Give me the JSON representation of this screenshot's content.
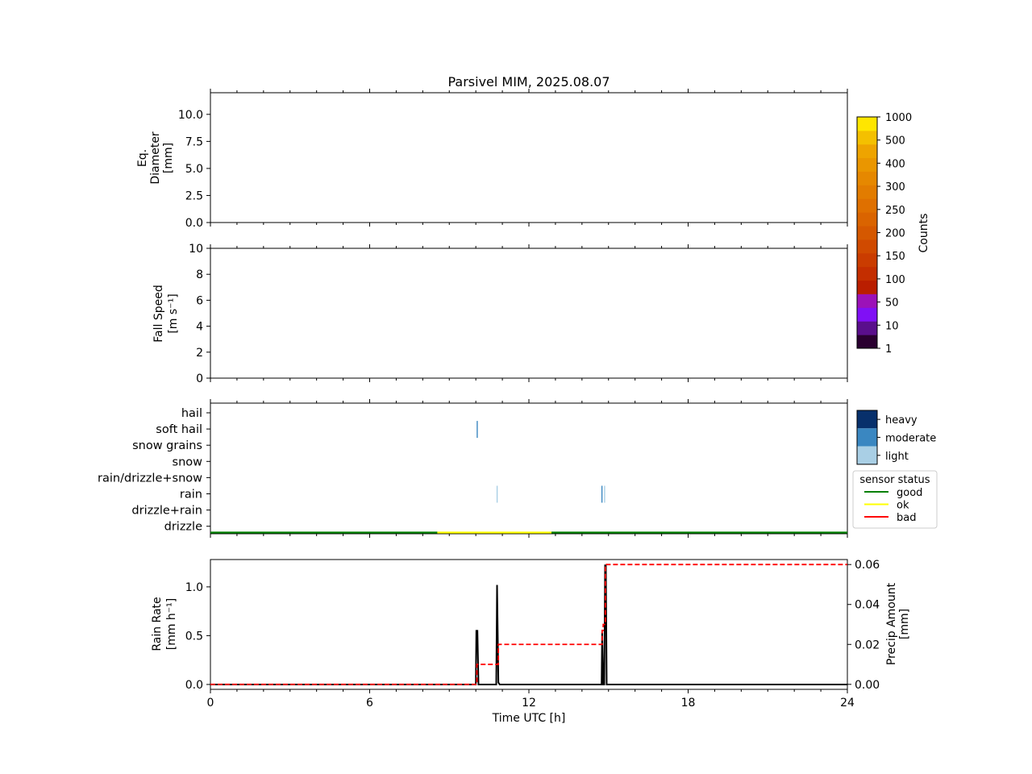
{
  "chart_data": {
    "title": "Parsivel MIM, 2025.08.07",
    "xlabel": "Time UTC [h]",
    "xlim": [
      0,
      24
    ],
    "x_ticks": [
      0,
      6,
      12,
      18,
      24
    ],
    "panels": [
      {
        "type": "heatmap",
        "ylabel": [
          "Eq.",
          "Diameter",
          "[mm]"
        ],
        "ylim": [
          0,
          12
        ],
        "y_ticks": [
          0.0,
          2.5,
          5.0,
          7.5,
          10.0
        ],
        "y_tick_labels": [
          "0.0",
          "2.5",
          "5.0",
          "7.5",
          "10.0"
        ],
        "values": []
      },
      {
        "type": "heatmap",
        "ylabel": [
          "Fall Speed",
          "[m s⁻¹]"
        ],
        "ylim": [
          0,
          10
        ],
        "y_ticks": [
          0,
          2,
          4,
          6,
          8,
          10
        ],
        "y_tick_labels": [
          "0",
          "2",
          "4",
          "6",
          "8",
          "10"
        ],
        "values": []
      },
      {
        "type": "category-timeline",
        "categories": [
          "hail",
          "soft hail",
          "snow grains",
          "snow",
          "rain/drizzle+snow",
          "rain",
          "drizzle+rain",
          "drizzle"
        ],
        "events": [
          {
            "time": 10.05,
            "category": "soft hail",
            "intensity": "moderate"
          },
          {
            "time": 10.8,
            "category": "rain",
            "intensity": "light"
          },
          {
            "time": 14.75,
            "category": "rain",
            "intensity": "moderate"
          },
          {
            "time": 14.85,
            "category": "rain",
            "intensity": "light"
          }
        ],
        "sensor_status": [
          {
            "from": 0,
            "to": 8.55,
            "status": "good"
          },
          {
            "from": 8.55,
            "to": 12.85,
            "status": "ok"
          },
          {
            "from": 12.85,
            "to": 24,
            "status": "good"
          }
        ]
      },
      {
        "type": "line",
        "ylabel": [
          "Rain Rate",
          "[mm h⁻¹]"
        ],
        "ylim": [
          -0.05,
          1.28
        ],
        "y_ticks": [
          0.0,
          0.5,
          1.0
        ],
        "y_tick_labels": [
          "0.0",
          "0.5",
          "1.0"
        ],
        "y2label": [
          "Precip Amount",
          "[mm]"
        ],
        "y2lim": [
          -0.0025,
          0.0625
        ],
        "y2_ticks": [
          0.0,
          0.02,
          0.04,
          0.06
        ],
        "y2_tick_labels": [
          "0.00",
          "0.02",
          "0.04",
          "0.06"
        ],
        "series": [
          {
            "axis": "left",
            "color": "#000000",
            "style": "solid",
            "x": [
              0,
              10.0,
              10.02,
              10.06,
              10.1,
              10.77,
              10.8,
              10.85,
              10.9,
              14.74,
              14.76,
              14.8,
              14.84,
              14.87,
              14.9,
              14.93,
              24
            ],
            "y": [
              0,
              0,
              0.55,
              0.55,
              0,
              0,
              1.02,
              0.02,
              0,
              0,
              0.53,
              0,
              0,
              1.22,
              1.22,
              0,
              0
            ]
          },
          {
            "axis": "right",
            "color": "#ff0000",
            "style": "dashed",
            "x": [
              0,
              10.04,
              10.04,
              10.85,
              10.85,
              14.76,
              14.76,
              14.8,
              14.8,
              14.88,
              14.88,
              24
            ],
            "y": [
              0,
              0,
              0.01,
              0.01,
              0.02,
              0.02,
              0.027,
              0.027,
              0.03,
              0.03,
              0.06,
              0.06
            ]
          }
        ]
      }
    ],
    "colorbar_counts": {
      "label": "Counts",
      "tick_labels": [
        "1",
        "10",
        "50",
        "100",
        "150",
        "200",
        "250",
        "300",
        "400",
        "500",
        "1000"
      ],
      "colors": [
        "#2a0030",
        "#5a0f8c",
        "#8010f5",
        "#9c12b8",
        "#ba1e00",
        "#c42e00",
        "#ca3c00",
        "#d04a00",
        "#d55800",
        "#da6400",
        "#df7000",
        "#e27c00",
        "#e68800",
        "#ea9600",
        "#eea400",
        "#f4c000",
        "#ffe600"
      ]
    },
    "intensity_legend": [
      {
        "label": "heavy",
        "color": "#08306b"
      },
      {
        "label": "moderate",
        "color": "#3a87c1"
      },
      {
        "label": "light",
        "color": "#a9cfe5"
      }
    ],
    "status_legend": {
      "title": "sensor status",
      "items": [
        {
          "label": "good",
          "color": "#008000"
        },
        {
          "label": "ok",
          "color": "#ffff00"
        },
        {
          "label": "bad",
          "color": "#ff0000"
        }
      ]
    }
  }
}
